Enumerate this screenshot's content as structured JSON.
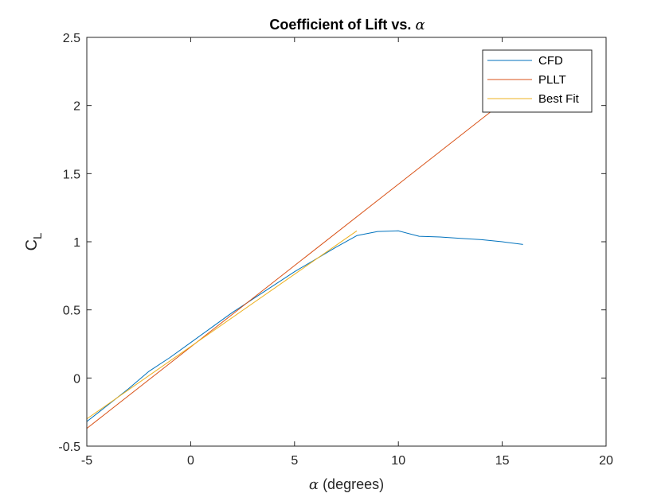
{
  "chart_data": {
    "type": "line",
    "title": "Coefficient of Lift vs.",
    "title_symbol": "α",
    "xlabel_symbol": "α",
    "xlabel": "(degrees)",
    "ylabel": "C",
    "ylabel_sub": "L",
    "xlim": [
      -5,
      20
    ],
    "ylim": [
      -0.5,
      2.5
    ],
    "xticks": [
      "-5",
      "0",
      "5",
      "10",
      "15",
      "20"
    ],
    "yticks": [
      "-0.5",
      "0",
      "0.5",
      "1",
      "1.5",
      "2",
      "2.5"
    ],
    "grid": false,
    "legend_position": "top-right",
    "series": [
      {
        "name": "CFD",
        "color": "#0072BD",
        "x": [
          -5,
          -4,
          -3,
          -2,
          -1,
          0,
          1,
          2,
          3,
          4,
          5,
          6,
          7,
          8,
          9,
          10,
          11,
          12,
          13,
          14,
          15,
          16
        ],
        "y": [
          -0.32,
          -0.2,
          -0.08,
          0.05,
          0.15,
          0.26,
          0.37,
          0.48,
          0.58,
          0.68,
          0.78,
          0.87,
          0.96,
          1.045,
          1.075,
          1.08,
          1.04,
          1.035,
          1.025,
          1.015,
          1.0,
          0.98
        ]
      },
      {
        "name": "PLLT",
        "color": "#D95319",
        "x": [
          -5,
          15
        ],
        "y": [
          -0.37,
          2.02
        ]
      },
      {
        "name": "Best Fit",
        "color": "#EDB120",
        "x": [
          -5,
          8
        ],
        "y": [
          -0.3,
          1.08
        ]
      }
    ]
  }
}
